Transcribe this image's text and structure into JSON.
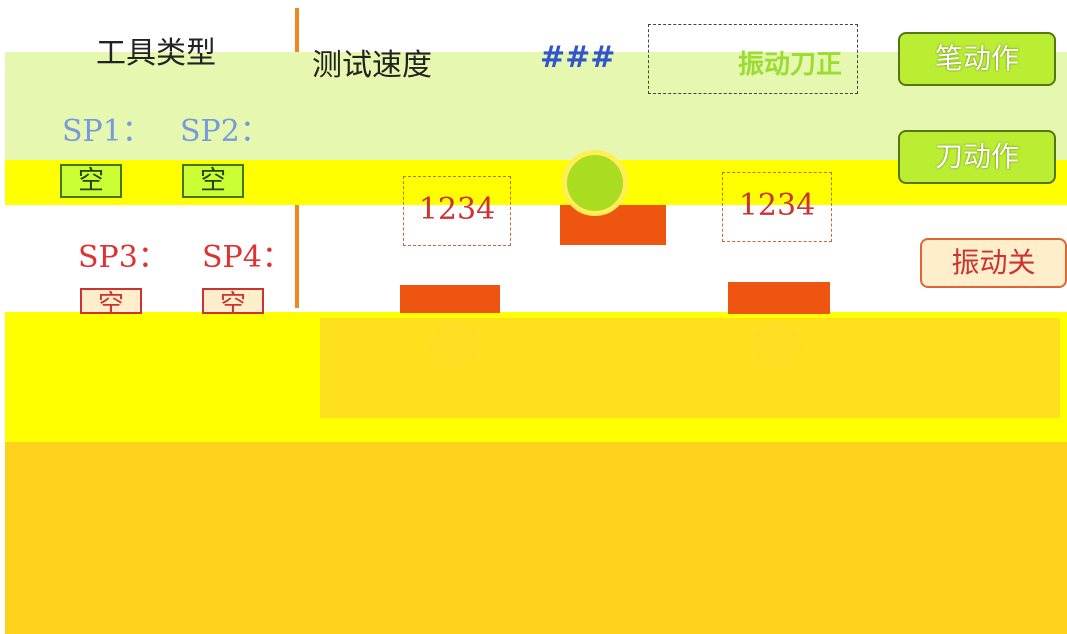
{
  "panel": {
    "tool_type_label": "工具类型",
    "test_speed_label": "测试速度",
    "speed_value": "###",
    "vibration_knife_label": "振动刀正",
    "pen_action_button": "笔动作",
    "knife_action_button": "刀动作",
    "vibration_off_button": "振动关",
    "tool_slots": [
      {
        "label": "SP1：",
        "value": "空"
      },
      {
        "label": "SP2：",
        "value": "空"
      },
      {
        "label": "SP3：",
        "value": "空"
      },
      {
        "label": "SP4：",
        "value": "空"
      }
    ],
    "counters": [
      "1234",
      "1234"
    ]
  }
}
